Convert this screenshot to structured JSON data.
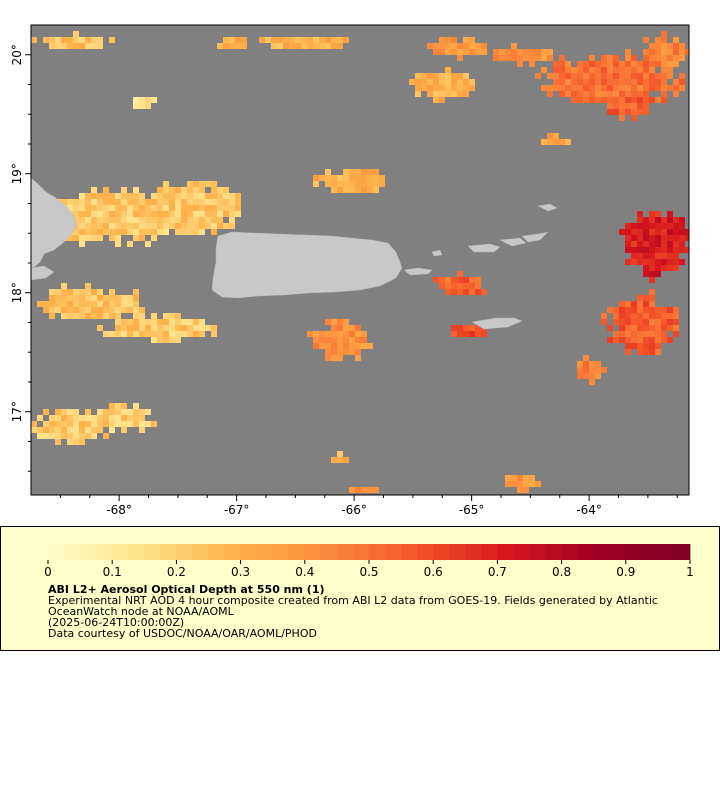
{
  "map": {
    "background_color": "#808080",
    "land_color": "#c8c8c8",
    "lon_ticks": [
      {
        "value": -68,
        "label": "-68°"
      },
      {
        "value": -67,
        "label": "-67°"
      },
      {
        "value": -66,
        "label": "-66°"
      },
      {
        "value": -65,
        "label": "-65°"
      },
      {
        "value": -64,
        "label": "-64°"
      }
    ],
    "lat_ticks": [
      {
        "value": 20,
        "label": "20°"
      },
      {
        "value": 19,
        "label": "19°"
      },
      {
        "value": 18,
        "label": "18°"
      },
      {
        "value": 17,
        "label": "17°"
      }
    ],
    "lon_range": [
      -68.75,
      -63.15
    ],
    "lat_range": [
      16.3,
      20.25
    ]
  },
  "legend": {
    "title": "ABI L2+ Aerosol Optical Depth at 550 nm (1)",
    "description": "Experimental NRT AOD 4 hour composite created from ABI L2 data from GOES-19. Fields generated by Atlantic OceanWatch node at NOAA/AOML",
    "time": "(2025-06-24T10:00:00Z)",
    "credit": "Data courtesy of USDOC/NOAA/OAR/AOML/PHOD",
    "colorbar": {
      "min": 0,
      "max": 1,
      "ticks": [
        "0",
        "0.1",
        "0.2",
        "0.3",
        "0.4",
        "0.5",
        "0.6",
        "0.7",
        "0.8",
        "0.9",
        "1"
      ],
      "colors": [
        "#ffffcc",
        "#fee38b",
        "#fdb24a",
        "#fb8c3c",
        "#f4562a",
        "#d8161d",
        "#9e0025",
        "#800026"
      ]
    }
  }
}
